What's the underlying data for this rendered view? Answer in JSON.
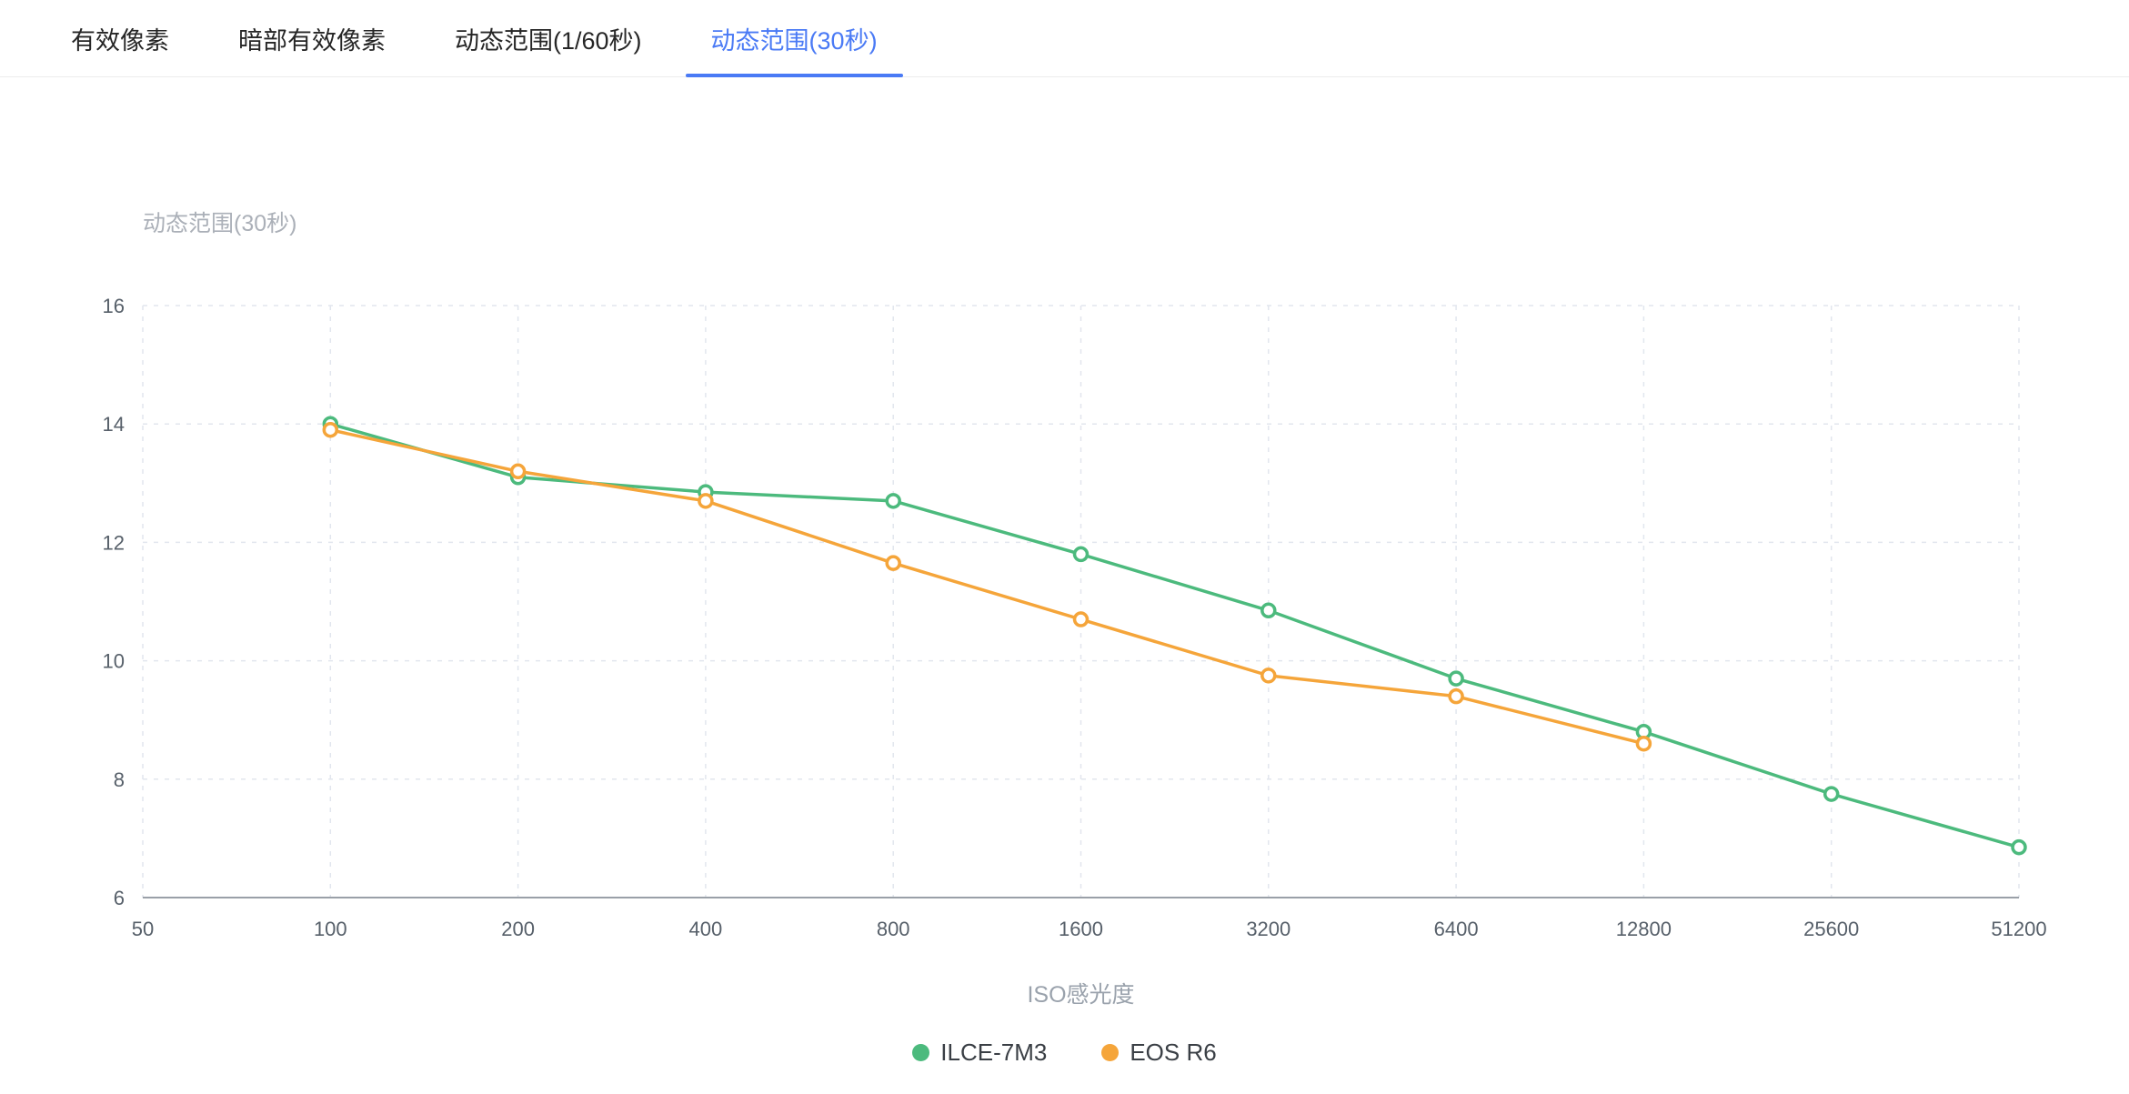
{
  "tabs": [
    {
      "label": "有效像素",
      "active": false
    },
    {
      "label": "暗部有效像素",
      "active": false
    },
    {
      "label": "动态范围(1/60秒)",
      "active": false
    },
    {
      "label": "动态范围(30秒)",
      "active": true
    }
  ],
  "colors": {
    "tab_active": "#4a7af5",
    "grid": "#e2e6ee",
    "axis_line": "#9aa0a8",
    "tick_label": "#57606a",
    "title": "#abb0b8"
  },
  "chart_data": {
    "type": "line",
    "title": "动态范围(30秒)",
    "xlabel": "ISO感光度",
    "ylabel": "",
    "x_categories": [
      "50",
      "100",
      "200",
      "400",
      "800",
      "1600",
      "3200",
      "6400",
      "12800",
      "25600",
      "51200"
    ],
    "ylim": [
      6,
      16
    ],
    "y_interval": 2,
    "grid": true,
    "grid_style": "dashed",
    "legend_position": "bottom",
    "marker": "hollow-circle",
    "series": [
      {
        "name": "ILCE-7M3",
        "color": "#4cba7d",
        "values": [
          null,
          14.0,
          13.1,
          12.85,
          12.7,
          11.8,
          10.85,
          9.7,
          8.8,
          7.75,
          6.85
        ]
      },
      {
        "name": "EOS R6",
        "color": "#f5a53a",
        "values": [
          null,
          13.9,
          13.2,
          12.7,
          11.65,
          10.7,
          9.75,
          9.4,
          8.6,
          null,
          null
        ]
      }
    ]
  }
}
